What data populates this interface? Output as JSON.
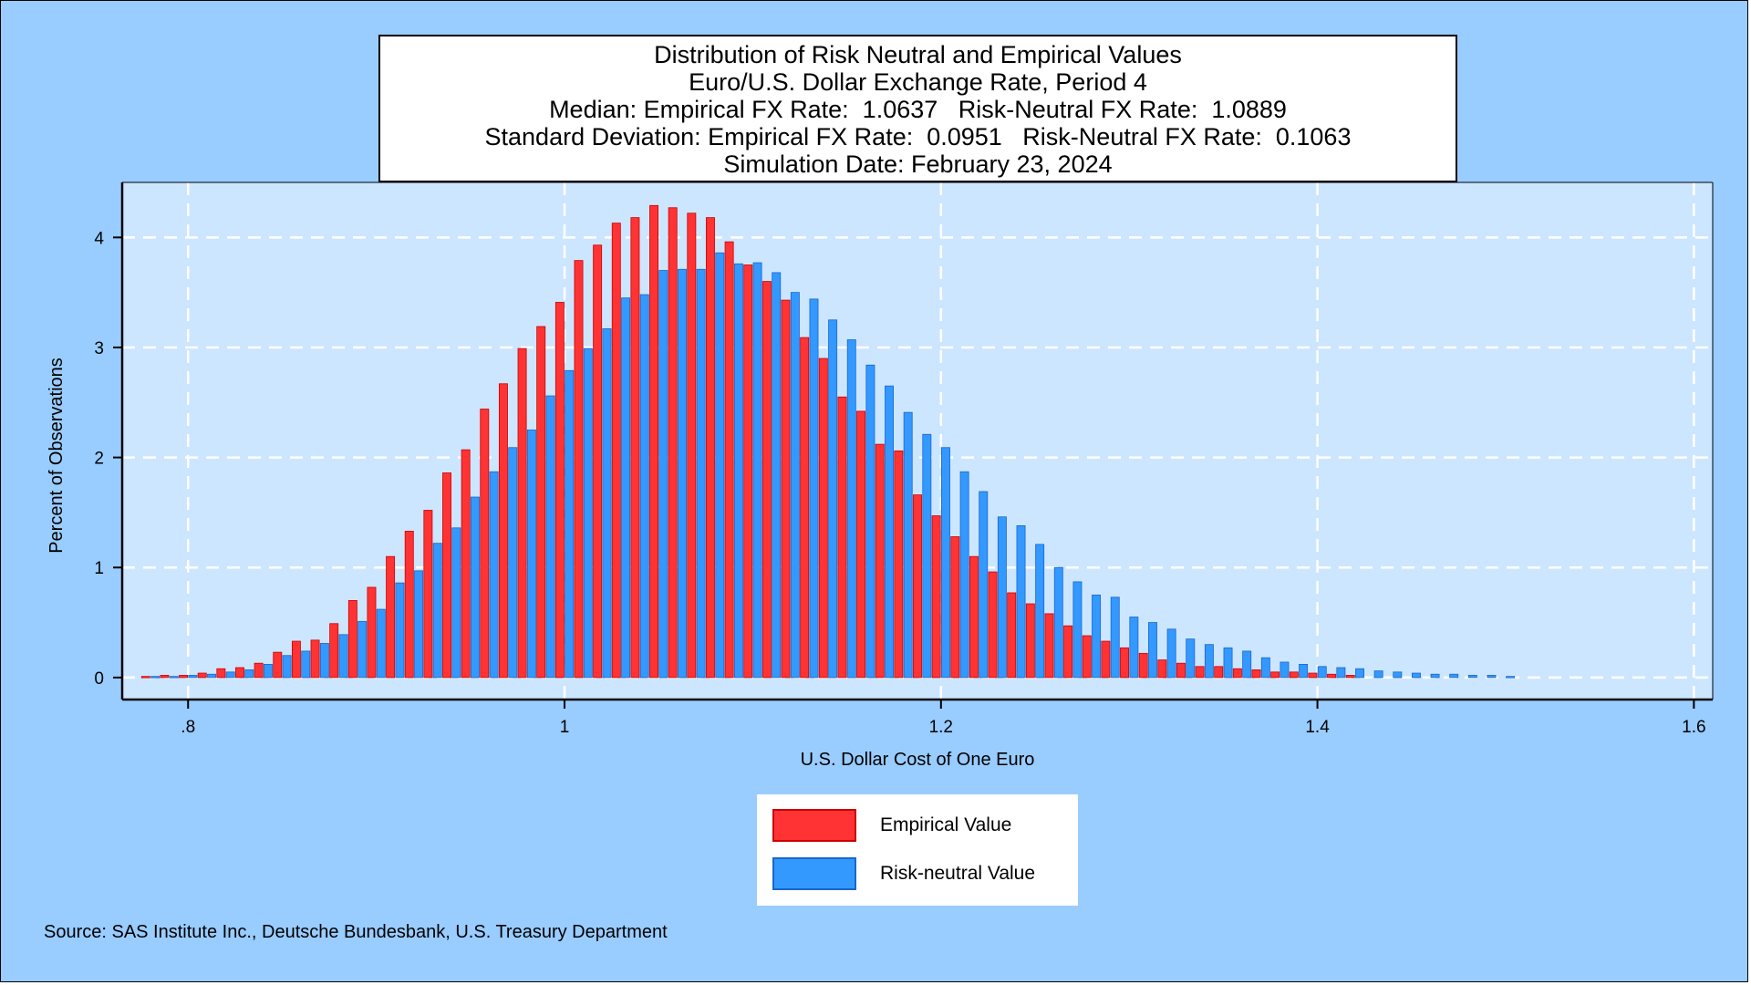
{
  "chart_data": {
    "type": "bar",
    "title": [
      "Distribution of Risk Neutral and Empirical Values",
      "Euro/U.S. Dollar Exchange Rate, Period 4",
      "Median: Empirical FX Rate:  1.0637   Risk-Neutral FX Rate:  1.0889",
      "Standard Deviation: Empirical FX Rate:  0.0951   Risk-Neutral FX Rate:  0.1063",
      "Simulation Date: February 23, 2024"
    ],
    "xlabel": "U.S. Dollar Cost of One Euro",
    "ylabel": "Percent of Observations",
    "xlim": [
      0.765,
      1.61
    ],
    "ylim": [
      -0.2,
      4.5
    ],
    "xticks": [
      0.8,
      1.0,
      1.2,
      1.4,
      1.6
    ],
    "xtick_labels": [
      ".8",
      "1",
      "1.2",
      "1.4",
      "1.6"
    ],
    "yticks": [
      0,
      1,
      2,
      3,
      4
    ],
    "ytick_labels": [
      "0",
      "1",
      "2",
      "3",
      "4"
    ],
    "grid": true,
    "legend_position": "bottom-center",
    "bin_width": 0.01,
    "series": [
      {
        "name": "Empirical Value",
        "color": "#ff3333",
        "x": [
          0.78,
          0.79,
          0.8,
          0.81,
          0.82,
          0.83,
          0.84,
          0.85,
          0.86,
          0.87,
          0.88,
          0.89,
          0.9,
          0.91,
          0.92,
          0.93,
          0.94,
          0.95,
          0.96,
          0.97,
          0.98,
          0.99,
          1.0,
          1.01,
          1.02,
          1.03,
          1.04,
          1.05,
          1.06,
          1.07,
          1.08,
          1.09,
          1.1,
          1.11,
          1.12,
          1.13,
          1.14,
          1.15,
          1.16,
          1.17,
          1.18,
          1.19,
          1.2,
          1.21,
          1.22,
          1.23,
          1.24,
          1.25,
          1.26,
          1.27,
          1.28,
          1.29,
          1.3,
          1.31,
          1.32,
          1.33,
          1.34,
          1.35,
          1.36,
          1.37,
          1.38,
          1.39,
          1.4,
          1.41,
          1.42
        ],
        "values": [
          0.01,
          0.02,
          0.02,
          0.04,
          0.08,
          0.09,
          0.13,
          0.23,
          0.33,
          0.34,
          0.49,
          0.7,
          0.82,
          1.1,
          1.33,
          1.52,
          1.86,
          2.07,
          2.44,
          2.67,
          2.99,
          3.19,
          3.41,
          3.79,
          3.93,
          4.13,
          4.18,
          4.29,
          4.27,
          4.22,
          4.18,
          3.96,
          3.75,
          3.6,
          3.43,
          3.09,
          2.9,
          2.55,
          2.42,
          2.12,
          2.06,
          1.66,
          1.47,
          1.28,
          1.1,
          0.96,
          0.77,
          0.67,
          0.58,
          0.47,
          0.38,
          0.33,
          0.27,
          0.22,
          0.16,
          0.13,
          0.1,
          0.1,
          0.08,
          0.07,
          0.05,
          0.05,
          0.04,
          0.03,
          0.02
        ]
      },
      {
        "name": "Risk-neutral Value",
        "color": "#3399ff",
        "x": [
          0.78,
          0.79,
          0.8,
          0.81,
          0.82,
          0.83,
          0.84,
          0.85,
          0.86,
          0.87,
          0.88,
          0.89,
          0.9,
          0.91,
          0.92,
          0.93,
          0.94,
          0.95,
          0.96,
          0.97,
          0.98,
          0.99,
          1.0,
          1.01,
          1.02,
          1.03,
          1.04,
          1.05,
          1.06,
          1.07,
          1.08,
          1.09,
          1.1,
          1.11,
          1.12,
          1.13,
          1.14,
          1.15,
          1.16,
          1.17,
          1.18,
          1.19,
          1.2,
          1.21,
          1.22,
          1.23,
          1.24,
          1.25,
          1.26,
          1.27,
          1.28,
          1.29,
          1.3,
          1.31,
          1.32,
          1.33,
          1.34,
          1.35,
          1.36,
          1.37,
          1.38,
          1.39,
          1.4,
          1.41,
          1.42,
          1.43,
          1.44,
          1.45,
          1.46,
          1.47,
          1.48,
          1.49,
          1.5
        ],
        "values": [
          0.01,
          0.01,
          0.02,
          0.03,
          0.05,
          0.07,
          0.12,
          0.2,
          0.24,
          0.31,
          0.39,
          0.51,
          0.62,
          0.86,
          0.97,
          1.22,
          1.36,
          1.64,
          1.87,
          2.09,
          2.25,
          2.56,
          2.79,
          2.99,
          3.17,
          3.45,
          3.48,
          3.7,
          3.71,
          3.71,
          3.86,
          3.76,
          3.77,
          3.68,
          3.5,
          3.44,
          3.25,
          3.07,
          2.84,
          2.65,
          2.41,
          2.21,
          2.09,
          1.87,
          1.69,
          1.46,
          1.38,
          1.21,
          1.0,
          0.87,
          0.75,
          0.73,
          0.55,
          0.5,
          0.44,
          0.35,
          0.3,
          0.27,
          0.24,
          0.18,
          0.14,
          0.12,
          0.1,
          0.09,
          0.08,
          0.06,
          0.05,
          0.04,
          0.03,
          0.03,
          0.02,
          0.02,
          0.01
        ]
      }
    ]
  },
  "legend": {
    "items": [
      {
        "label": "Empirical Value",
        "color": "#ff3333",
        "border": "#cc0000"
      },
      {
        "label": "Risk-neutral Value",
        "color": "#3399ff",
        "border": "#1a66cc"
      }
    ]
  },
  "source": "Source: SAS Institute Inc., Deutsche Bundesbank, U.S. Treasury Department"
}
